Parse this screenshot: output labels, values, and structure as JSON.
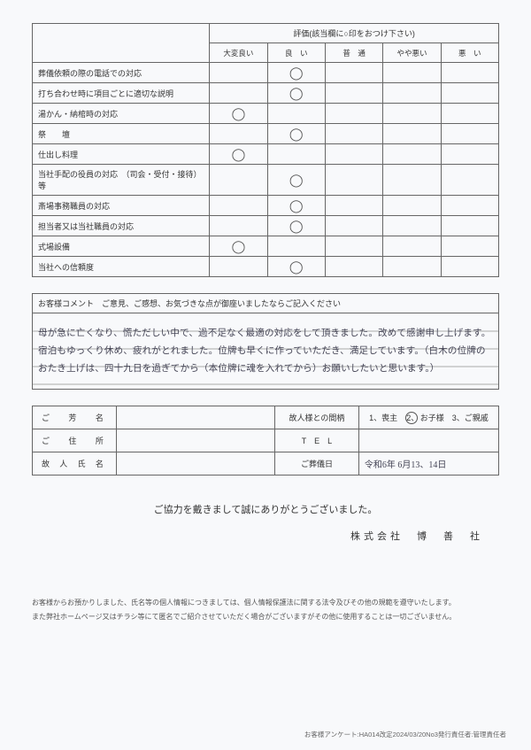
{
  "rating_table": {
    "header_title": "評価(該当欄に○印をおつけ下さい)",
    "columns": [
      "大変良い",
      "良　い",
      "普　通",
      "やや悪い",
      "悪　い"
    ],
    "rows": [
      {
        "label": "葬儀依頼の際の電話での対応",
        "mark_col": 1
      },
      {
        "label": "打ち合わせ時に項目ごとに適切な説明",
        "mark_col": 1
      },
      {
        "label": "湯かん・納棺時の対応",
        "mark_col": 0
      },
      {
        "label": "祭　　壇",
        "mark_col": 1
      },
      {
        "label": "仕出し料理",
        "mark_col": 0
      },
      {
        "label": "当社手配の役員の対応　（司会・受付・接待）等",
        "mark_col": 1
      },
      {
        "label": "斎場事務職員の対応",
        "mark_col": 1
      },
      {
        "label": "担当者又は当社職員の対応",
        "mark_col": 1
      },
      {
        "label": "式場設備",
        "mark_col": 0
      },
      {
        "label": "当社への信頼度",
        "mark_col": 1
      }
    ],
    "mark_symbol": "◯"
  },
  "comment": {
    "header": "お客様コメント　ご意見、ご感想、お気づきな点が御座いましたならご記入ください",
    "body": "母が急に亡くなり、慌ただしい中で、過不足なく最適の対応をして頂きました。改めて感謝申し上げます。宿泊もゆっくり休め、疲れがとれました。位牌も早くに作っていただき、満足しています。（白木の位牌のおたき上げは、四十九日を過ぎてから（本位牌に魂を入れてから）お願いしたいと思います。）"
  },
  "info": {
    "labels": {
      "name": "ご　芳　名",
      "address": "ご　住　所",
      "deceased": "故 人 氏 名",
      "relation": "故人様との間柄",
      "tel": "T　E　L",
      "funeral_date": "ご葬儀日"
    },
    "relation_options": "1、喪主　　　　お子様　　3、ご親戚",
    "relation_circled": "2、",
    "funeral_date_value": "令和6年 6月13、14日"
  },
  "closing": "ご協力を戴きまして誠にありがとうございました。",
  "company": "株式会社　博　善　社",
  "footnote1": "お客様からお預かりしました、氏名等の個人情報につきましては、個人情報保護法に関する法令及びその他の規範を遵守いたします。",
  "footnote2": "また弊社ホームページ又はチラシ等にて匿名でご紹介させていただく場合がございますがその他に使用することは一切ございません。",
  "docid": "お客様アンケート:HA014改定2024/03/20No3発行責任者:管理責任者"
}
